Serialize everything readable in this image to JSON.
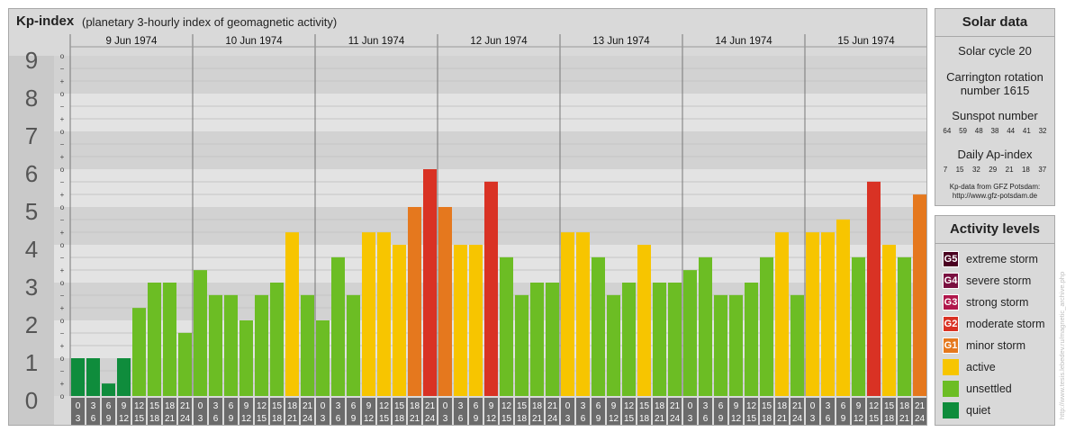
{
  "header": {
    "title": "Kp-index",
    "subtitle": "(planetary 3-hourly index of geomagnetic activity)"
  },
  "chart_data": {
    "type": "bar",
    "title": "Kp-index",
    "subtitle": "(planetary 3-hourly index of geomagnetic activity)",
    "ylim": [
      0,
      9
    ],
    "y_ticks": [
      "0",
      "1",
      "2",
      "3",
      "4",
      "5",
      "6",
      "7",
      "8",
      "9"
    ],
    "sub_ticks": [
      "o",
      "+",
      "−",
      "o"
    ],
    "days": [
      "9 Jun 1974",
      "10 Jun 1974",
      "11 Jun 1974",
      "12 Jun 1974",
      "13 Jun 1974",
      "14 Jun 1974",
      "15 Jun 1974"
    ],
    "interval_start": [
      "0",
      "3",
      "6",
      "9",
      "12",
      "15",
      "18",
      "21"
    ],
    "interval_end": [
      "3",
      "6",
      "9",
      "12",
      "15",
      "18",
      "21",
      "24"
    ],
    "values": [
      [
        1.0,
        1.0,
        0.33,
        1.0,
        2.33,
        3.0,
        3.0,
        1.67
      ],
      [
        3.33,
        2.67,
        2.67,
        2.0,
        2.67,
        3.0,
        4.33,
        2.67
      ],
      [
        2.0,
        3.67,
        2.67,
        4.33,
        4.33,
        4.0,
        5.0,
        6.0
      ],
      [
        5.0,
        4.0,
        4.0,
        5.67,
        3.67,
        2.67,
        3.0,
        3.0
      ],
      [
        4.33,
        4.33,
        3.67,
        2.67,
        3.0,
        4.0,
        3.0,
        3.0
      ],
      [
        3.33,
        3.67,
        2.67,
        2.67,
        3.0,
        3.67,
        4.33,
        2.67
      ],
      [
        4.33,
        4.33,
        4.67,
        3.67,
        5.67,
        4.0,
        3.67,
        5.33
      ]
    ],
    "colors": {
      "quiet": "#0f8c3c",
      "unsettled": "#6cbd24",
      "active": "#f7c500",
      "minor": "#e5781e",
      "moderate": "#d93224",
      "strong": "#b0174b",
      "severe": "#7a1040",
      "extreme": "#4a0020"
    }
  },
  "solar": {
    "title": "Solar data",
    "cycle": "Solar cycle 20",
    "carrington_1": "Carrington rotation",
    "carrington_2": "number 1615",
    "sunspot_label": "Sunspot number",
    "sunspot_values": [
      "64",
      "59",
      "48",
      "38",
      "44",
      "41",
      "32"
    ],
    "ap_label": "Daily Ap-index",
    "ap_values": [
      "7",
      "15",
      "32",
      "29",
      "21",
      "18",
      "37"
    ],
    "source_1": "Kp-data from GFZ Potsdam:",
    "source_2": "http://www.gfz-potsdam.de"
  },
  "activity": {
    "title": "Activity levels",
    "levels": [
      {
        "badge": "G5",
        "label": "extreme storm",
        "color": "#4a0020"
      },
      {
        "badge": "G4",
        "label": "severe storm",
        "color": "#7a1040"
      },
      {
        "badge": "G3",
        "label": "strong storm",
        "color": "#b0174b"
      },
      {
        "badge": "G2",
        "label": "moderate storm",
        "color": "#d93224"
      },
      {
        "badge": "G1",
        "label": "minor storm",
        "color": "#e5781e"
      },
      {
        "badge": "",
        "label": "active",
        "color": "#f7c500"
      },
      {
        "badge": "",
        "label": "unsettled",
        "color": "#6cbd24"
      },
      {
        "badge": "",
        "label": "quiet",
        "color": "#0f8c3c"
      }
    ]
  },
  "watermark": "http://www.tesis.lebedev.ru/magnetic_archive.php"
}
